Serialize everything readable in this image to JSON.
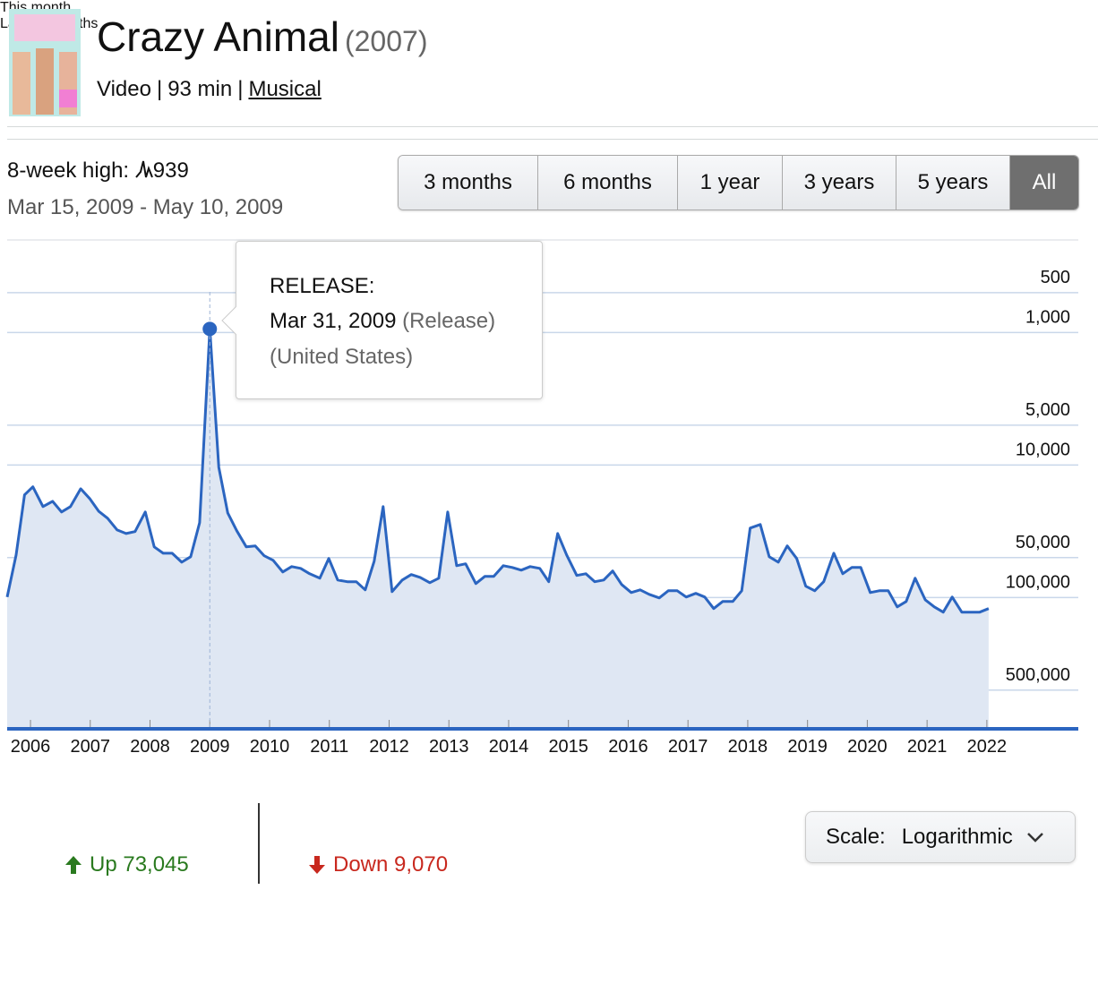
{
  "header": {
    "title": "Crazy Animal",
    "year": "(2007)",
    "format": "Video",
    "runtime": "93 min",
    "genre": "Musical",
    "separator": "|"
  },
  "summary": {
    "label": "8-week high:",
    "value": 939,
    "range": "Mar 15, 2009 - May 10, 2009"
  },
  "range_buttons": [
    "3 months",
    "6 months",
    "1 year",
    "3 years",
    "5 years",
    "All"
  ],
  "selected_range": 5,
  "chart_data": {
    "type": "line",
    "color": "#2b65c0",
    "area_color": "#dfe7f3",
    "log_scale": true,
    "grid": true,
    "x": [
      2005.61,
      2005.76,
      2005.9,
      2006.04,
      2006.21,
      2006.37,
      2006.52,
      2006.67,
      2006.84,
      2006.99,
      2007.14,
      2007.29,
      2007.45,
      2007.6,
      2007.75,
      2007.92,
      2008.07,
      2008.22,
      2008.37,
      2008.53,
      2008.68,
      2008.83,
      2009.0,
      2009.15,
      2009.3,
      2009.45,
      2009.61,
      2009.76,
      2009.91,
      2010.06,
      2010.22,
      2010.37,
      2010.52,
      2010.67,
      2010.84,
      2010.99,
      2011.14,
      2011.3,
      2011.45,
      2011.6,
      2011.75,
      2011.9,
      2012.05,
      2012.22,
      2012.37,
      2012.52,
      2012.68,
      2012.83,
      2012.98,
      2013.13,
      2013.28,
      2013.45,
      2013.6,
      2013.75,
      2013.91,
      2014.06,
      2014.21,
      2014.36,
      2014.52,
      2014.67,
      2014.82,
      2014.97,
      2015.14,
      2015.29,
      2015.44,
      2015.59,
      2015.74,
      2015.89,
      2016.05,
      2016.2,
      2016.35,
      2016.52,
      2016.67,
      2016.82,
      2016.97,
      2017.13,
      2017.28,
      2017.43,
      2017.58,
      2017.75,
      2017.9,
      2018.04,
      2018.21,
      2018.36,
      2018.51,
      2018.66,
      2018.82,
      2018.97,
      2019.12,
      2019.27,
      2019.44,
      2019.59,
      2019.74,
      2019.89,
      2020.05,
      2020.2,
      2020.35,
      2020.5,
      2020.65,
      2020.8,
      2020.97,
      2021.12,
      2021.27,
      2021.42,
      2021.58,
      2021.73,
      2021.88,
      2022.03
    ],
    "values": [
      99100,
      47700,
      16800,
      14600,
      20600,
      18800,
      22600,
      20600,
      15100,
      17900,
      22300,
      25200,
      30900,
      32900,
      31800,
      22600,
      41500,
      46300,
      46300,
      54100,
      49200,
      27200,
      939,
      10400,
      23000,
      31300,
      41500,
      40800,
      48400,
      52400,
      64100,
      58400,
      60300,
      66200,
      71500,
      50800,
      73800,
      76000,
      76000,
      87500,
      53200,
      20600,
      90300,
      73800,
      67100,
      70500,
      77300,
      71500,
      22600,
      57500,
      55700,
      78500,
      69300,
      69300,
      57500,
      59300,
      62200,
      58400,
      60300,
      76000,
      32900,
      47700,
      68200,
      66200,
      76000,
      73800,
      63100,
      79800,
      91800,
      87500,
      94600,
      100700,
      88900,
      88900,
      99100,
      93100,
      99100,
      121300,
      107200,
      107200,
      88900,
      29900,
      28100,
      49200,
      54100,
      40800,
      50800,
      82200,
      88900,
      76000,
      46300,
      66200,
      59300,
      59300,
      91800,
      88900,
      88900,
      117700,
      107200,
      71500,
      104000,
      117700,
      129100,
      99100,
      129100,
      129100,
      129100,
      121300
    ],
    "xlim": [
      2005.61,
      2023.53
    ],
    "xticks": [
      2006,
      2007,
      2008,
      2009,
      2010,
      2011,
      2012,
      2013,
      2014,
      2015,
      2016,
      2017,
      2018,
      2019,
      2020,
      2021,
      2022
    ],
    "ylim": [
      950000,
      200
    ],
    "yticks": [
      500,
      {
        "value": 1000,
        "label": "1,000"
      },
      {
        "value": 5000,
        "label": "5,000"
      },
      {
        "value": 10000,
        "label": "10,000"
      },
      {
        "value": 50000,
        "label": "50,000"
      },
      {
        "value": 100000,
        "label": "100,000"
      },
      {
        "value": 500000,
        "label": "500,000"
      }
    ],
    "annotation": {
      "x": 2009.0,
      "title": "RELEASE:",
      "date": "Mar 31, 2009",
      "kind": "(Release)",
      "region": "(United States)"
    }
  },
  "stats": [
    {
      "label": "This month",
      "direction": "up",
      "text": "Up 73,045"
    },
    {
      "label": "Last 12 months",
      "direction": "down",
      "text": "Down 9,070"
    }
  ],
  "scale_control": {
    "label": "Scale:",
    "value": "Logarithmic"
  }
}
